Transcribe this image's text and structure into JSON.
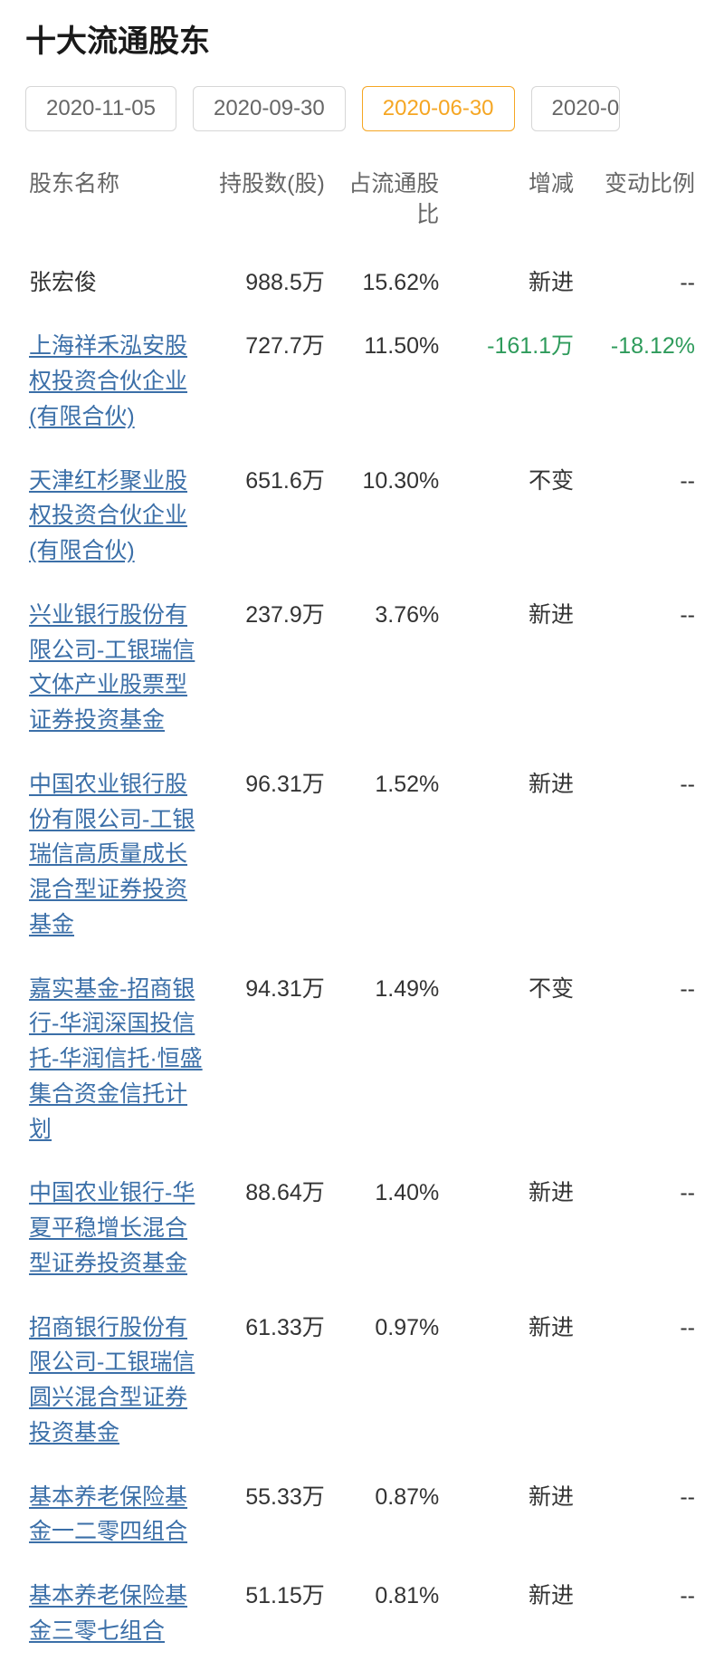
{
  "title": "十大流通股东",
  "tabs": {
    "items": [
      {
        "label": "2020-11-05",
        "active": false
      },
      {
        "label": "2020-09-30",
        "active": false
      },
      {
        "label": "2020-06-30",
        "active": true
      },
      {
        "label": "2020-0",
        "active": false,
        "cut": true
      }
    ]
  },
  "table": {
    "columns": {
      "name": "股东名称",
      "shares": "持股数(股)",
      "pct": "占流通股比",
      "change": "增减",
      "rate": "变动比例"
    },
    "rows": [
      {
        "name": "张宏俊",
        "is_link": false,
        "shares": "988.5万",
        "pct": "15.62%",
        "change": "新进",
        "change_neg": false,
        "rate": "--",
        "rate_neg": false
      },
      {
        "name": "上海祥禾泓安股权投资合伙企业(有限合伙)",
        "is_link": true,
        "shares": "727.7万",
        "pct": "11.50%",
        "change": "-161.1万",
        "change_neg": true,
        "rate": "-18.12%",
        "rate_neg": true
      },
      {
        "name": "天津红杉聚业股权投资合伙企业(有限合伙)",
        "is_link": true,
        "shares": "651.6万",
        "pct": "10.30%",
        "change": "不变",
        "change_neg": false,
        "rate": "--",
        "rate_neg": false
      },
      {
        "name": "兴业银行股份有限公司-工银瑞信文体产业股票型证券投资基金",
        "is_link": true,
        "shares": "237.9万",
        "pct": "3.76%",
        "change": "新进",
        "change_neg": false,
        "rate": "--",
        "rate_neg": false
      },
      {
        "name": "中国农业银行股份有限公司-工银瑞信高质量成长混合型证券投资基金",
        "is_link": true,
        "shares": "96.31万",
        "pct": "1.52%",
        "change": "新进",
        "change_neg": false,
        "rate": "--",
        "rate_neg": false
      },
      {
        "name": "嘉实基金-招商银行-华润深国投信托-华润信托·恒盛集合资金信托计划",
        "is_link": true,
        "shares": "94.31万",
        "pct": "1.49%",
        "change": "不变",
        "change_neg": false,
        "rate": "--",
        "rate_neg": false
      },
      {
        "name": "中国农业银行-华夏平稳增长混合型证券投资基金",
        "is_link": true,
        "shares": "88.64万",
        "pct": "1.40%",
        "change": "新进",
        "change_neg": false,
        "rate": "--",
        "rate_neg": false
      },
      {
        "name": "招商银行股份有限公司-工银瑞信圆兴混合型证券投资基金",
        "is_link": true,
        "shares": "61.33万",
        "pct": "0.97%",
        "change": "新进",
        "change_neg": false,
        "rate": "--",
        "rate_neg": false
      },
      {
        "name": "基本养老保险基金一二零四组合",
        "is_link": true,
        "shares": "55.33万",
        "pct": "0.87%",
        "change": "新进",
        "change_neg": false,
        "rate": "--",
        "rate_neg": false
      },
      {
        "name": "基本养老保险基金三零七组合",
        "is_link": true,
        "shares": "51.15万",
        "pct": "0.81%",
        "change": "新进",
        "change_neg": false,
        "rate": "--",
        "rate_neg": false
      }
    ]
  },
  "colors": {
    "accent": "#f5a623",
    "link": "#3b6fa8",
    "negative": "#2e9b5b",
    "text": "#333333",
    "muted": "#666666",
    "border": "#d6d6d6",
    "background": "#ffffff"
  }
}
